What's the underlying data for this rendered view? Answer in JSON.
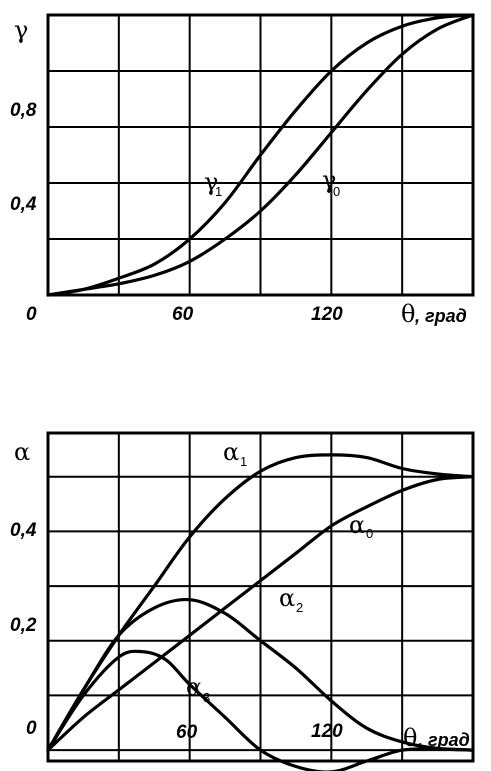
{
  "chart_data": [
    {
      "type": "line",
      "ylabel": "γ",
      "xlabel_symbol": "θ",
      "xlabel_unit": ", град",
      "x_ticks": [
        "0",
        "60",
        "120"
      ],
      "y_ticks": [
        "0,4",
        "0,8"
      ],
      "xlim": [
        0,
        180
      ],
      "ylim": [
        0,
        1.0
      ],
      "grid": true,
      "series": [
        {
          "name": "γ",
          "sub": "1",
          "x": [
            0,
            15,
            30,
            45,
            60,
            75,
            90,
            105,
            120,
            135,
            150,
            165,
            180
          ],
          "y": [
            0,
            0.02,
            0.06,
            0.11,
            0.2,
            0.33,
            0.5,
            0.66,
            0.8,
            0.9,
            0.96,
            0.99,
            1.0
          ]
        },
        {
          "name": "γ",
          "sub": "0",
          "x": [
            0,
            15,
            30,
            45,
            60,
            75,
            90,
            105,
            120,
            135,
            150,
            165,
            180
          ],
          "y": [
            0,
            0.02,
            0.04,
            0.07,
            0.12,
            0.2,
            0.3,
            0.43,
            0.58,
            0.73,
            0.86,
            0.95,
            1.0
          ]
        }
      ]
    },
    {
      "type": "line",
      "ylabel": "α",
      "xlabel_symbol": "θ",
      "xlabel_unit": ", град",
      "x_ticks": [
        "0",
        "60",
        "120"
      ],
      "y_ticks": [
        "0,2",
        "0,4"
      ],
      "xlim": [
        0,
        180
      ],
      "ylim": [
        -0.02,
        0.58
      ],
      "grid": true,
      "series": [
        {
          "name": "α",
          "sub": "1",
          "x": [
            0,
            15,
            30,
            45,
            60,
            75,
            90,
            105,
            120,
            135,
            150,
            165,
            180
          ],
          "y": [
            0,
            0.11,
            0.21,
            0.3,
            0.39,
            0.46,
            0.51,
            0.535,
            0.54,
            0.535,
            0.515,
            0.505,
            0.5
          ]
        },
        {
          "name": "α",
          "sub": "0",
          "x": [
            0,
            15,
            30,
            45,
            60,
            75,
            90,
            105,
            120,
            135,
            150,
            165,
            180
          ],
          "y": [
            0,
            0.06,
            0.11,
            0.16,
            0.21,
            0.26,
            0.31,
            0.36,
            0.41,
            0.445,
            0.475,
            0.495,
            0.5
          ]
        },
        {
          "name": "α",
          "sub": "2",
          "x": [
            0,
            15,
            30,
            45,
            60,
            75,
            90,
            105,
            120,
            135,
            150,
            165,
            180
          ],
          "y": [
            0,
            0.11,
            0.21,
            0.26,
            0.275,
            0.25,
            0.2,
            0.15,
            0.09,
            0.04,
            0.015,
            0.003,
            0
          ]
        },
        {
          "name": "α",
          "sub": "3",
          "x": [
            0,
            15,
            30,
            40,
            50,
            60,
            75,
            90,
            105,
            120,
            135,
            150,
            165,
            180
          ],
          "y": [
            0,
            0.1,
            0.17,
            0.18,
            0.165,
            0.12,
            0.06,
            0.0,
            -0.03,
            -0.04,
            -0.02,
            0.0,
            0.002,
            0
          ]
        }
      ]
    }
  ]
}
